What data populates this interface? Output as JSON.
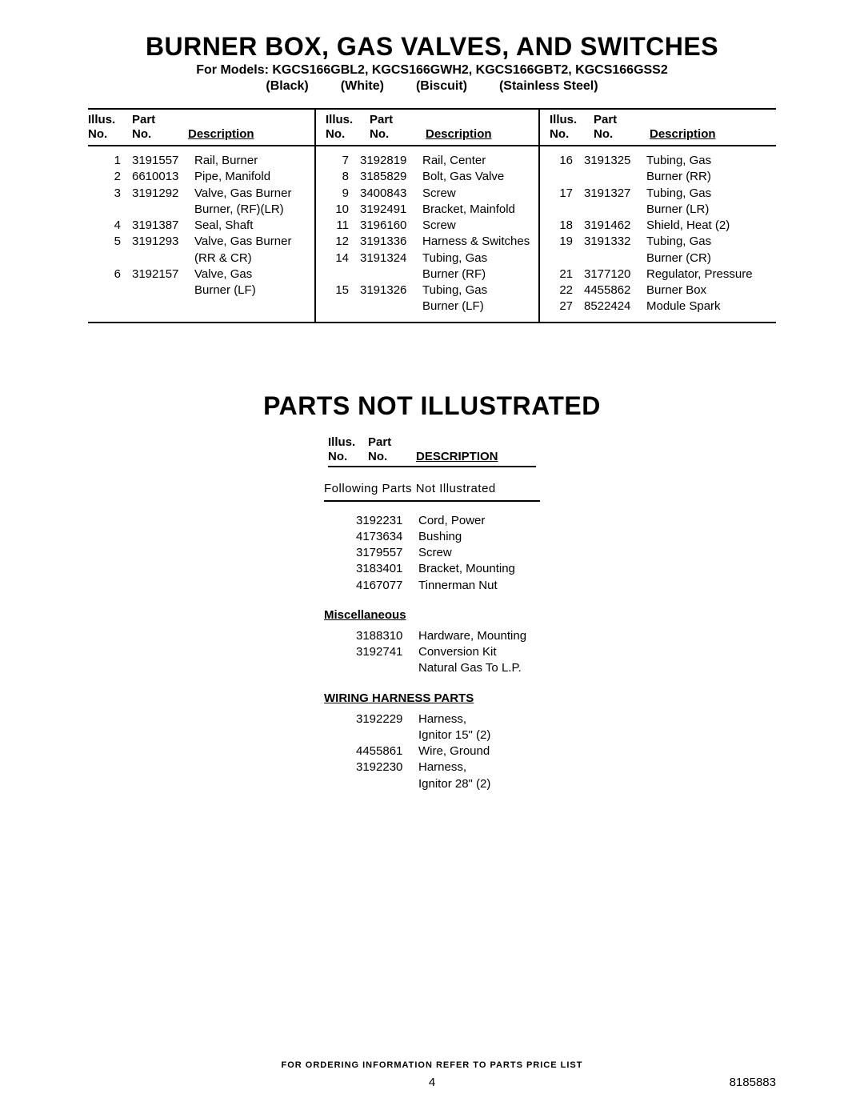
{
  "title": "BURNER BOX, GAS VALVES, AND SWITCHES",
  "subtitle": "For Models: KGCS166GBL2, KGCS166GWH2, KGCS166GBT2, KGCS166GSS2",
  "colors": [
    "(Black)",
    "(White)",
    "(Biscuit)",
    "(Stainless Steel)"
  ],
  "hdr": {
    "illus1": "Illus.",
    "illus2": "No.",
    "part1": "Part",
    "part2": "No.",
    "desc": "Description"
  },
  "col1": [
    {
      "illus": "1",
      "part": "3191557",
      "desc": "Rail, Burner"
    },
    {
      "illus": "2",
      "part": "6610013",
      "desc": "Pipe, Manifold"
    },
    {
      "illus": "3",
      "part": "3191292",
      "desc": "Valve, Gas Burner"
    },
    {
      "illus": "",
      "part": "",
      "desc": "Burner, (RF)(LR)"
    },
    {
      "illus": "4",
      "part": "3191387",
      "desc": "Seal, Shaft"
    },
    {
      "illus": "5",
      "part": "3191293",
      "desc": "Valve, Gas Burner"
    },
    {
      "illus": "",
      "part": "",
      "desc": "(RR & CR)"
    },
    {
      "illus": "6",
      "part": "3192157",
      "desc": "Valve, Gas"
    },
    {
      "illus": "",
      "part": "",
      "desc": "Burner (LF)"
    }
  ],
  "col2": [
    {
      "illus": "7",
      "part": "3192819",
      "desc": "Rail, Center"
    },
    {
      "illus": "8",
      "part": "3185829",
      "desc": "Bolt, Gas Valve"
    },
    {
      "illus": "9",
      "part": "3400843",
      "desc": "Screw"
    },
    {
      "illus": "10",
      "part": "3192491",
      "desc": "Bracket, Mainfold"
    },
    {
      "illus": "11",
      "part": "3196160",
      "desc": "Screw"
    },
    {
      "illus": "12",
      "part": "3191336",
      "desc": "Harness & Switches"
    },
    {
      "illus": "14",
      "part": "3191324",
      "desc": "Tubing, Gas"
    },
    {
      "illus": "",
      "part": "",
      "desc": "Burner (RF)"
    },
    {
      "illus": "15",
      "part": "3191326",
      "desc": "Tubing, Gas"
    },
    {
      "illus": "",
      "part": "",
      "desc": "Burner (LF)"
    }
  ],
  "col3": [
    {
      "illus": "16",
      "part": "3191325",
      "desc": "Tubing, Gas"
    },
    {
      "illus": "",
      "part": "",
      "desc": "Burner (RR)"
    },
    {
      "illus": "17",
      "part": "3191327",
      "desc": "Tubing, Gas"
    },
    {
      "illus": "",
      "part": "",
      "desc": "Burner (LR)"
    },
    {
      "illus": "18",
      "part": "3191462",
      "desc": "Shield, Heat (2)"
    },
    {
      "illus": "19",
      "part": "3191332",
      "desc": "Tubing, Gas"
    },
    {
      "illus": "",
      "part": "",
      "desc": "Burner (CR)"
    },
    {
      "illus": "21",
      "part": "3177120",
      "desc": "Regulator, Pressure"
    },
    {
      "illus": "22",
      "part": "4455862",
      "desc": "Burner Box"
    },
    {
      "illus": "27",
      "part": "8522424",
      "desc": "Module Spark"
    }
  ],
  "title2": "PARTS NOT ILLUSTRATED",
  "pni_intro": "Following Parts Not Illustrated",
  "pni_main": [
    {
      "part": "3192231",
      "desc": "Cord, Power"
    },
    {
      "part": "4173634",
      "desc": "Bushing"
    },
    {
      "part": "3179557",
      "desc": "Screw"
    },
    {
      "part": "3183401",
      "desc": "Bracket, Mounting"
    },
    {
      "part": "4167077",
      "desc": "Tinnerman Nut"
    }
  ],
  "misc_title": "Miscellaneous",
  "misc": [
    {
      "part": "3188310",
      "desc": "Hardware, Mounting"
    },
    {
      "part": "3192741",
      "desc": "Conversion Kit"
    },
    {
      "part": "",
      "desc": "Natural Gas To L.P."
    }
  ],
  "wiring_title": "WIRING HARNESS PARTS",
  "wiring": [
    {
      "part": "3192229",
      "desc": "Harness,"
    },
    {
      "part": "",
      "desc": "Ignitor 15\" (2)"
    },
    {
      "part": "4455861",
      "desc": "Wire, Ground"
    },
    {
      "part": "3192230",
      "desc": "Harness,"
    },
    {
      "part": "",
      "desc": "Ignitor 28\" (2)"
    }
  ],
  "footer": "FOR ORDERING INFORMATION REFER TO PARTS PRICE LIST",
  "page_num": "4",
  "doc_num": "8185883"
}
